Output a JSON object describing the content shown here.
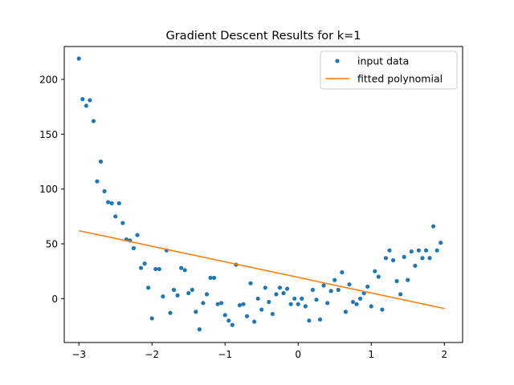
{
  "chart_data": {
    "type": "scatter",
    "title": "Gradient Descent Results for k=1",
    "xlabel": "",
    "ylabel": "",
    "xlim": [
      -3.2,
      2.25
    ],
    "ylim": [
      -40,
      230
    ],
    "xticks": [
      -3,
      -2,
      -1,
      0,
      1,
      2
    ],
    "xtick_labels": [
      "−3",
      "−2",
      "−1",
      "0",
      "1",
      "2"
    ],
    "yticks": [
      0,
      50,
      100,
      150,
      200
    ],
    "ytick_labels": [
      "0",
      "50",
      "100",
      "150",
      "200"
    ],
    "grid": false,
    "legend_position": "top-right",
    "series": [
      {
        "name": "input data",
        "kind": "scatter",
        "color": "#1f77b4",
        "points": [
          [
            -3.0,
            219
          ],
          [
            -2.95,
            182
          ],
          [
            -2.9,
            176
          ],
          [
            -2.85,
            181
          ],
          [
            -2.8,
            162
          ],
          [
            -2.75,
            107
          ],
          [
            -2.7,
            125
          ],
          [
            -2.65,
            98
          ],
          [
            -2.6,
            88
          ],
          [
            -2.55,
            87
          ],
          [
            -2.5,
            75
          ],
          [
            -2.45,
            87
          ],
          [
            -2.4,
            69
          ],
          [
            -2.35,
            54
          ],
          [
            -2.3,
            53
          ],
          [
            -2.25,
            46
          ],
          [
            -2.2,
            58
          ],
          [
            -2.15,
            28
          ],
          [
            -2.1,
            32
          ],
          [
            -2.05,
            10
          ],
          [
            -2.0,
            -18
          ],
          [
            -1.95,
            27
          ],
          [
            -1.9,
            27
          ],
          [
            -1.85,
            2
          ],
          [
            -1.8,
            44
          ],
          [
            -1.75,
            -13
          ],
          [
            -1.7,
            8
          ],
          [
            -1.65,
            3
          ],
          [
            -1.6,
            28
          ],
          [
            -1.55,
            26
          ],
          [
            -1.5,
            5
          ],
          [
            -1.45,
            8
          ],
          [
            -1.4,
            -12
          ],
          [
            -1.35,
            -28
          ],
          [
            -1.3,
            -4
          ],
          [
            -1.25,
            4
          ],
          [
            -1.2,
            19
          ],
          [
            -1.15,
            19
          ],
          [
            -1.1,
            -5
          ],
          [
            -1.05,
            -4
          ],
          [
            -1.0,
            -15
          ],
          [
            -0.95,
            -20
          ],
          [
            -0.9,
            -24
          ],
          [
            -0.85,
            31
          ],
          [
            -0.8,
            -6
          ],
          [
            -0.75,
            -5
          ],
          [
            -0.7,
            -16
          ],
          [
            -0.65,
            14
          ],
          [
            -0.6,
            -21
          ],
          [
            -0.55,
            0
          ],
          [
            -0.5,
            -10
          ],
          [
            -0.45,
            10
          ],
          [
            -0.4,
            -3
          ],
          [
            -0.35,
            -14
          ],
          [
            -0.3,
            4
          ],
          [
            -0.25,
            10
          ],
          [
            -0.2,
            5
          ],
          [
            -0.15,
            9
          ],
          [
            -0.1,
            -5
          ],
          [
            -0.05,
            0
          ],
          [
            0.0,
            -5
          ],
          [
            0.05,
            0
          ],
          [
            0.1,
            -7
          ],
          [
            0.15,
            -20
          ],
          [
            0.2,
            8
          ],
          [
            0.25,
            -1
          ],
          [
            0.3,
            -19
          ],
          [
            0.35,
            12
          ],
          [
            0.4,
            -4
          ],
          [
            0.45,
            7
          ],
          [
            0.5,
            17
          ],
          [
            0.55,
            8
          ],
          [
            0.6,
            24
          ],
          [
            0.65,
            -12
          ],
          [
            0.7,
            13
          ],
          [
            0.75,
            -3
          ],
          [
            0.8,
            -5
          ],
          [
            0.85,
            0
          ],
          [
            0.9,
            5
          ],
          [
            0.95,
            11
          ],
          [
            1.0,
            -7
          ],
          [
            1.05,
            25
          ],
          [
            1.1,
            20
          ],
          [
            1.15,
            -10
          ],
          [
            1.2,
            37
          ],
          [
            1.25,
            44
          ],
          [
            1.3,
            35
          ],
          [
            1.35,
            16
          ],
          [
            1.4,
            4
          ],
          [
            1.45,
            38
          ],
          [
            1.5,
            17
          ],
          [
            1.55,
            43
          ],
          [
            1.6,
            30
          ],
          [
            1.65,
            44
          ],
          [
            1.7,
            37
          ],
          [
            1.75,
            44
          ],
          [
            1.8,
            37
          ],
          [
            1.85,
            66
          ],
          [
            1.9,
            44
          ],
          [
            1.95,
            51
          ]
        ]
      },
      {
        "name": "fitted polynomial",
        "kind": "line",
        "color": "#ff7f0e",
        "points": [
          [
            -3.0,
            62
          ],
          [
            2.0,
            -9
          ]
        ]
      }
    ]
  }
}
